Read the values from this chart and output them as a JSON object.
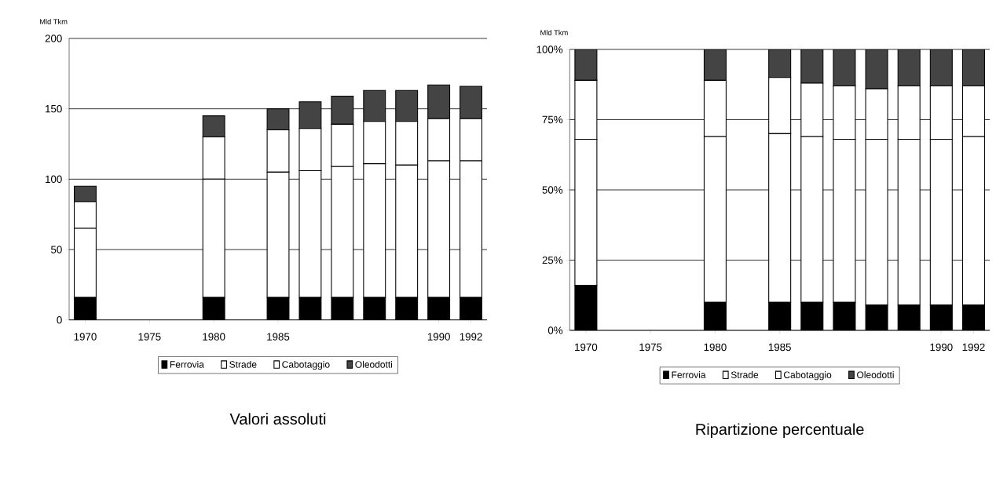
{
  "chart_data": [
    {
      "type": "bar",
      "stacked": true,
      "title": "Valori assoluti",
      "ylabel": "Mld Tkm",
      "categories": [
        "1970",
        null,
        "1975",
        null,
        "1980",
        null,
        "1985",
        null,
        null,
        null,
        null,
        "1990",
        "1992"
      ],
      "series": [
        {
          "name": "Ferrovia",
          "color": "#000000",
          "values": [
            16,
            null,
            null,
            null,
            16,
            null,
            16,
            16,
            16,
            16,
            16,
            16,
            16
          ]
        },
        {
          "name": "Strade",
          "color": "#ffffff",
          "values": [
            49,
            null,
            null,
            null,
            84,
            null,
            89,
            90,
            93,
            95,
            94,
            97,
            97
          ]
        },
        {
          "name": "Cabotaggio",
          "color": "#ffffff",
          "values": [
            19,
            null,
            null,
            null,
            30,
            null,
            30,
            30,
            30,
            30,
            31,
            30,
            30
          ]
        },
        {
          "name": "Oleodotti",
          "color": "#444444",
          "values": [
            11,
            null,
            null,
            null,
            15,
            null,
            15,
            19,
            20,
            22,
            22,
            24,
            23
          ]
        }
      ],
      "ylim": [
        0,
        200
      ],
      "yticks": [
        0,
        50,
        100,
        150,
        200
      ],
      "grid": "y",
      "legend": "bottom"
    },
    {
      "type": "bar",
      "stacked": true,
      "title": "Ripartizione percentuale",
      "ylabel": "Mld Tkm",
      "categories": [
        "1970",
        null,
        "1975",
        null,
        "1980",
        null,
        "1985",
        null,
        null,
        null,
        null,
        "1990",
        "1992"
      ],
      "series": [
        {
          "name": "Ferrovia",
          "color": "#000000",
          "values": [
            16,
            null,
            null,
            null,
            10,
            null,
            10,
            10,
            10,
            9,
            9,
            9,
            9
          ]
        },
        {
          "name": "Strade",
          "color": "#ffffff",
          "values": [
            52,
            null,
            null,
            null,
            59,
            null,
            60,
            59,
            58,
            59,
            59,
            59,
            60
          ]
        },
        {
          "name": "Cabotaggio",
          "color": "#ffffff",
          "values": [
            21,
            null,
            null,
            null,
            20,
            null,
            20,
            19,
            19,
            18,
            19,
            19,
            18
          ]
        },
        {
          "name": "Oleodotti",
          "color": "#444444",
          "values": [
            11,
            null,
            null,
            null,
            11,
            null,
            10,
            12,
            13,
            14,
            13,
            13,
            13
          ]
        }
      ],
      "ylim": [
        0,
        100
      ],
      "yticks": [
        {
          "value": 0,
          "label": "0%"
        },
        {
          "value": 25,
          "label": "25%"
        },
        {
          "value": 50,
          "label": "50%"
        },
        {
          "value": 75,
          "label": "75%"
        },
        {
          "value": 100,
          "label": "100%"
        }
      ],
      "grid": "y",
      "legend": "bottom"
    }
  ]
}
